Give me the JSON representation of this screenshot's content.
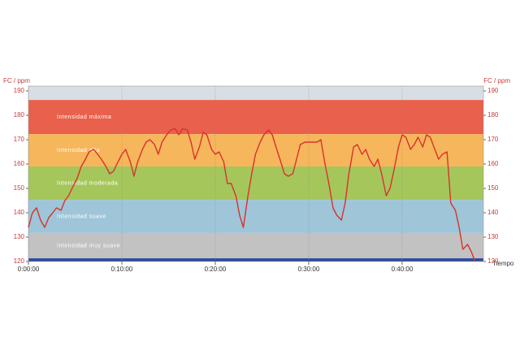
{
  "chart_data": {
    "type": "line",
    "y_label": "FC / ppm",
    "y2_label": "FC / ppm",
    "x_label": "Tiempo",
    "xlim": [
      0,
      48.7
    ],
    "ylim": [
      120,
      192
    ],
    "xticks": [
      {
        "value": 0,
        "label": "0:00:00"
      },
      {
        "value": 10,
        "label": "0:10:00"
      },
      {
        "value": 20,
        "label": "0:20:00"
      },
      {
        "value": 30,
        "label": "0:30:00"
      },
      {
        "value": 40,
        "label": "0:40:00"
      }
    ],
    "yticks": [
      120,
      130,
      140,
      150,
      160,
      170,
      180,
      190
    ],
    "zones": [
      {
        "from": 186.3,
        "to": 192,
        "color": "#d8dee4"
      },
      {
        "name": "Intensidad máxima",
        "from": 172.3,
        "to": 186.3,
        "color": "#e9604d"
      },
      {
        "name": "Intensidad alta",
        "from": 159,
        "to": 172.3,
        "color": "#f6b65c"
      },
      {
        "name": "Intensidad moderada",
        "from": 145.3,
        "to": 159,
        "color": "#a5c65b"
      },
      {
        "name": "Intensidad suave",
        "from": 131.7,
        "to": 145.3,
        "color": "#9ec5d8"
      },
      {
        "name": "Intensidad muy suave",
        "from": 121.3,
        "to": 131.7,
        "color": "#c2c2c2"
      },
      {
        "from": 120,
        "to": 121.3,
        "color": "#2a4a9c"
      }
    ],
    "series": [
      {
        "color": "#d8322c",
        "x": [
          0,
          0.43,
          0.87,
          1.3,
          1.74,
          2.17,
          2.6,
          3.0,
          3.5,
          3.9,
          4.3,
          4.8,
          5.2,
          5.65,
          6.1,
          6.5,
          7.0,
          7.4,
          7.8,
          8.3,
          8.7,
          9.1,
          9.6,
          10.0,
          10.4,
          10.9,
          11.3,
          11.7,
          12.2,
          12.6,
          13.0,
          13.5,
          13.9,
          14.3,
          14.8,
          15.2,
          15.7,
          16.1,
          16.5,
          17.0,
          17.4,
          17.8,
          18.3,
          18.7,
          19.1,
          19.6,
          20.0,
          20.4,
          20.9,
          21.3,
          21.7,
          22.2,
          22.6,
          23.0,
          23.5,
          23.9,
          24.3,
          24.8,
          25.2,
          25.7,
          26.1,
          26.5,
          27.0,
          27.4,
          27.8,
          28.3,
          28.7,
          29.1,
          29.6,
          30.0,
          30.4,
          30.9,
          31.3,
          31.7,
          32.2,
          32.6,
          33.0,
          33.5,
          33.9,
          34.3,
          34.8,
          35.2,
          35.7,
          36.1,
          36.5,
          37.0,
          37.4,
          37.8,
          38.3,
          38.7,
          39.1,
          39.6,
          40.0,
          40.4,
          40.9,
          41.3,
          41.7,
          42.2,
          42.6,
          43.0,
          43.5,
          43.9,
          44.3,
          44.8,
          45.2,
          45.7,
          46.1,
          46.5,
          47.0,
          47.4,
          47.8
        ],
        "values": [
          134,
          140,
          142,
          137,
          134,
          138,
          140,
          142,
          141,
          145,
          147,
          151,
          154,
          159,
          162,
          165,
          166,
          164,
          162,
          159,
          156,
          157,
          161,
          164,
          166,
          161,
          155,
          161,
          166,
          169,
          170,
          168,
          164,
          169,
          172,
          174,
          174.5,
          172,
          174.5,
          174,
          169,
          162,
          167,
          173,
          172,
          166,
          164,
          165,
          161,
          152,
          152,
          147,
          139,
          134,
          147,
          156,
          164,
          169,
          172,
          174,
          172,
          167,
          161,
          156,
          155,
          156,
          162,
          168,
          169,
          169,
          169,
          169,
          170,
          161,
          151,
          142,
          139,
          137,
          144,
          156,
          167,
          168,
          164,
          166,
          162,
          159,
          162,
          156,
          147,
          150,
          157,
          167,
          172,
          171,
          166,
          168,
          171,
          167,
          172,
          171,
          166,
          162,
          164,
          165,
          144,
          141,
          134,
          125,
          127,
          124,
          120
        ]
      }
    ]
  }
}
